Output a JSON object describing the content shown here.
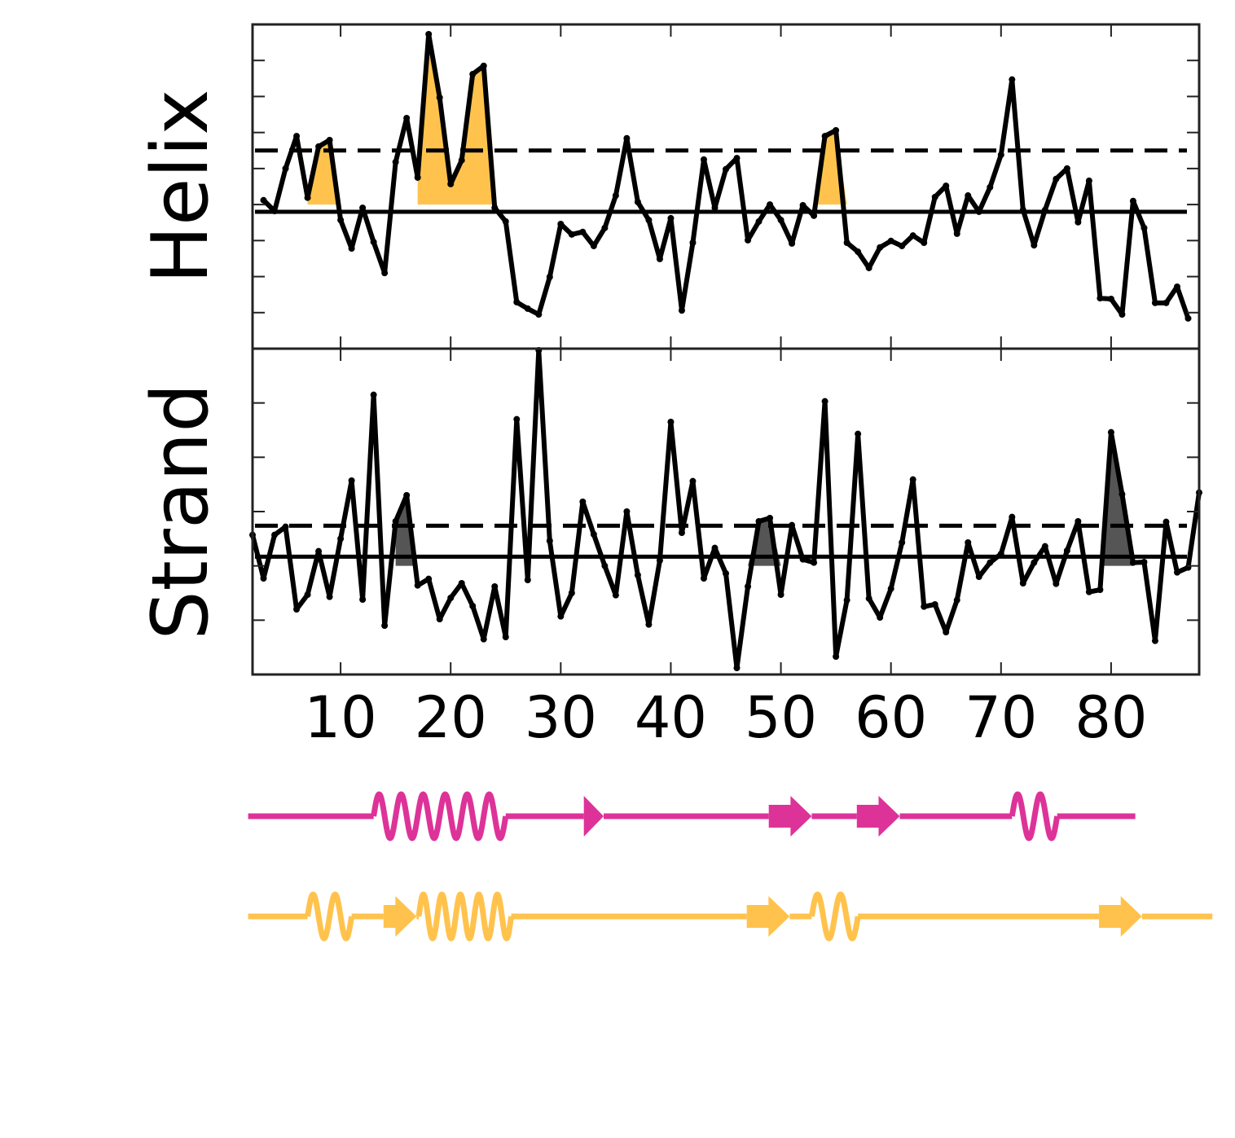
{
  "chart_data": [
    {
      "type": "line",
      "ylabel": "Helix",
      "color": "#000000",
      "x": [
        3,
        4,
        5,
        6,
        7,
        8,
        9,
        10,
        11,
        12,
        13,
        14,
        15,
        16,
        17,
        18,
        19,
        20,
        21,
        22,
        23,
        24,
        25,
        26,
        27,
        28,
        29,
        30,
        31,
        32,
        33,
        34,
        35,
        36,
        37,
        38,
        39,
        40,
        41,
        42,
        43,
        44,
        45,
        46,
        47,
        48,
        49,
        50,
        51,
        52,
        53,
        54,
        55,
        56,
        57,
        58,
        59,
        60,
        61,
        62,
        63,
        64,
        65,
        66,
        67,
        68,
        69,
        70,
        71,
        72,
        73,
        74,
        75,
        76,
        77,
        78,
        79,
        80,
        81,
        82,
        83,
        84,
        85,
        86,
        87
      ],
      "values": [
        4.12,
        3.82,
        5.0,
        5.9,
        4.19,
        5.61,
        5.79,
        3.57,
        2.78,
        3.91,
        2.96,
        2.1,
        5.18,
        6.4,
        4.75,
        8.73,
        6.97,
        4.57,
        5.23,
        7.62,
        7.85,
        3.91,
        3.53,
        1.29,
        1.11,
        0.95,
        1.99,
        3.46,
        3.17,
        3.24,
        2.85,
        3.35,
        4.25,
        5.84,
        4.07,
        3.57,
        2.49,
        3.62,
        1.06,
        2.94,
        5.25,
        3.91,
        4.98,
        5.29,
        3.01,
        3.53,
        4.0,
        3.57,
        2.92,
        3.98,
        3.69,
        5.9,
        6.06,
        2.94,
        2.69,
        2.24,
        2.81,
        2.99,
        2.85,
        3.14,
        2.94,
        4.21,
        4.52,
        3.19,
        4.25,
        3.8,
        4.48,
        5.38,
        7.47,
        3.85,
        2.87,
        3.85,
        4.71,
        5.0,
        3.51,
        4.66,
        1.4,
        1.38,
        0.95,
        4.1,
        3.35,
        1.27,
        1.27,
        1.72,
        0.84
      ],
      "hlines": [
        {
          "value": 3.8,
          "dash": false
        },
        {
          "value": 5.5,
          "dash": true
        }
      ],
      "fill": {
        "color": "#ffc34d",
        "base": 4,
        "ranges": [
          [
            7,
            10
          ],
          [
            17,
            24
          ],
          [
            53,
            56
          ]
        ]
      },
      "xlim": [
        2,
        88
      ],
      "xticks": [
        10,
        20,
        30,
        40,
        50,
        60,
        70,
        80
      ],
      "ylim": [
        0,
        9
      ],
      "yticks": [
        1,
        2,
        3,
        4,
        5,
        6,
        7,
        8
      ]
    },
    {
      "type": "line",
      "ylabel": "Strand",
      "color": "#000000",
      "x": [
        2,
        3,
        4,
        5,
        6,
        7,
        8,
        9,
        10,
        11,
        12,
        13,
        14,
        15,
        16,
        17,
        18,
        19,
        20,
        21,
        22,
        23,
        24,
        25,
        26,
        27,
        28,
        29,
        30,
        31,
        32,
        33,
        34,
        35,
        36,
        37,
        38,
        39,
        40,
        41,
        42,
        43,
        44,
        45,
        46,
        47,
        48,
        49,
        50,
        51,
        52,
        53,
        54,
        55,
        56,
        57,
        58,
        59,
        60,
        61,
        62,
        63,
        64,
        65,
        66,
        67,
        68,
        69,
        70,
        71,
        72,
        73,
        74,
        75,
        76,
        77,
        78,
        79,
        80,
        81,
        82,
        83,
        84,
        85,
        86,
        87,
        88
      ],
      "values": [
        2.57,
        1.77,
        2.57,
        2.72,
        1.2,
        1.47,
        2.27,
        1.43,
        2.5,
        3.57,
        1.38,
        5.15,
        0.9,
        2.82,
        3.3,
        1.64,
        1.76,
        1.02,
        1.41,
        1.68,
        1.26,
        0.65,
        1.62,
        0.69,
        4.7,
        1.74,
        5.97,
        2.46,
        1.07,
        1.5,
        3.18,
        2.58,
        2.0,
        1.46,
        3.0,
        1.83,
        0.92,
        2.1,
        4.65,
        2.61,
        3.56,
        1.77,
        2.33,
        1.86,
        0.12,
        1.62,
        2.82,
        2.88,
        1.47,
        2.75,
        2.12,
        2.06,
        5.03,
        0.33,
        1.37,
        4.43,
        1.4,
        1.05,
        1.58,
        2.43,
        3.59,
        1.25,
        1.29,
        0.78,
        1.37,
        2.43,
        1.8,
        2.06,
        2.22,
        2.9,
        1.68,
        2.06,
        2.36,
        1.67,
        2.28,
        2.82,
        1.52,
        1.56,
        4.46,
        3.32,
        2.06,
        2.07,
        0.62,
        2.81,
        1.88,
        1.97,
        3.35
      ],
      "hlines": [
        {
          "value": 2.17,
          "dash": false
        },
        {
          "value": 2.74,
          "dash": true
        }
      ],
      "fill": {
        "color": "#555555",
        "base": 2,
        "ranges": [
          [
            15,
            17
          ],
          [
            47,
            50
          ],
          [
            79,
            82
          ]
        ]
      },
      "xlim": [
        2,
        88
      ],
      "xticks": [
        10,
        20,
        30,
        40,
        50,
        60,
        70,
        80
      ],
      "ylim": [
        0,
        6
      ],
      "yticks": [
        1,
        2,
        3,
        4,
        5
      ]
    }
  ],
  "tracks": [
    {
      "color": "#dd3399",
      "line": [
        1.6,
        82.2
      ],
      "elements": [
        {
          "kind": "helix",
          "start": 13,
          "end": 25
        },
        {
          "kind": "strand",
          "start": 32.1,
          "end": 33.9
        },
        {
          "kind": "strand",
          "start": 48.9,
          "end": 52.8
        },
        {
          "kind": "strand",
          "start": 56.9,
          "end": 60.8
        },
        {
          "kind": "helix",
          "start": 71,
          "end": 75.1
        }
      ]
    },
    {
      "color": "#ffc34d",
      "line": [
        1.6,
        89.2
      ],
      "elements": [
        {
          "kind": "helix",
          "start": 7,
          "end": 11
        },
        {
          "kind": "strand",
          "start": 13.9,
          "end": 16.9
        },
        {
          "kind": "helix",
          "start": 17.1,
          "end": 25.5
        },
        {
          "kind": "strand",
          "start": 46.9,
          "end": 50.8
        },
        {
          "kind": "helix",
          "start": 52.8,
          "end": 57
        },
        {
          "kind": "strand",
          "start": 78.9,
          "end": 82.8
        }
      ]
    }
  ]
}
